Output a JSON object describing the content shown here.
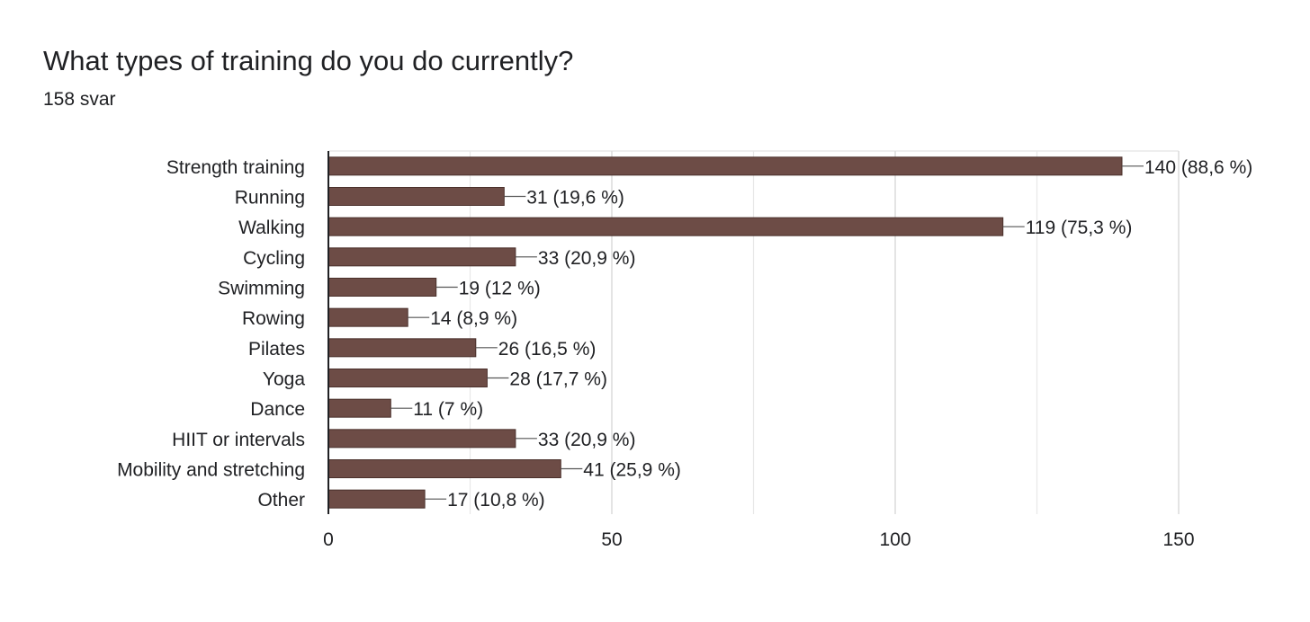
{
  "question": {
    "title": "What types of training do you do currently?",
    "response_count": "158 svar"
  },
  "colors": {
    "bar": "#6d4c46",
    "grid": "#e8e8e8",
    "axis": "#202124",
    "leader": "#555555"
  },
  "chart_data": {
    "type": "bar",
    "orientation": "horizontal",
    "title": "What types of training do you do currently?",
    "subtitle": "158 svar",
    "categories": [
      "Strength training",
      "Running",
      "Walking",
      "Cycling",
      "Swimming",
      "Rowing",
      "Pilates",
      "Yoga",
      "Dance",
      "HIIT or intervals",
      "Mobility and stretching",
      "Other"
    ],
    "values": [
      140,
      31,
      119,
      33,
      19,
      14,
      26,
      28,
      11,
      33,
      41,
      17
    ],
    "data_labels": [
      "140 (88,6 %)",
      "31 (19,6 %)",
      "119 (75,3 %)",
      "33 (20,9 %)",
      "19 (12 %)",
      "14 (8,9 %)",
      "26 (16,5 %)",
      "28 (17,7 %)",
      "11 (7 %)",
      "33 (20,9 %)",
      "41 (25,9 %)",
      "17 (10,8 %)"
    ],
    "xlim": [
      0,
      150
    ],
    "x_ticks": [
      0,
      50,
      100,
      150
    ],
    "x_minor_grid": [
      25,
      75,
      125
    ],
    "grid": true,
    "legend": "none"
  }
}
